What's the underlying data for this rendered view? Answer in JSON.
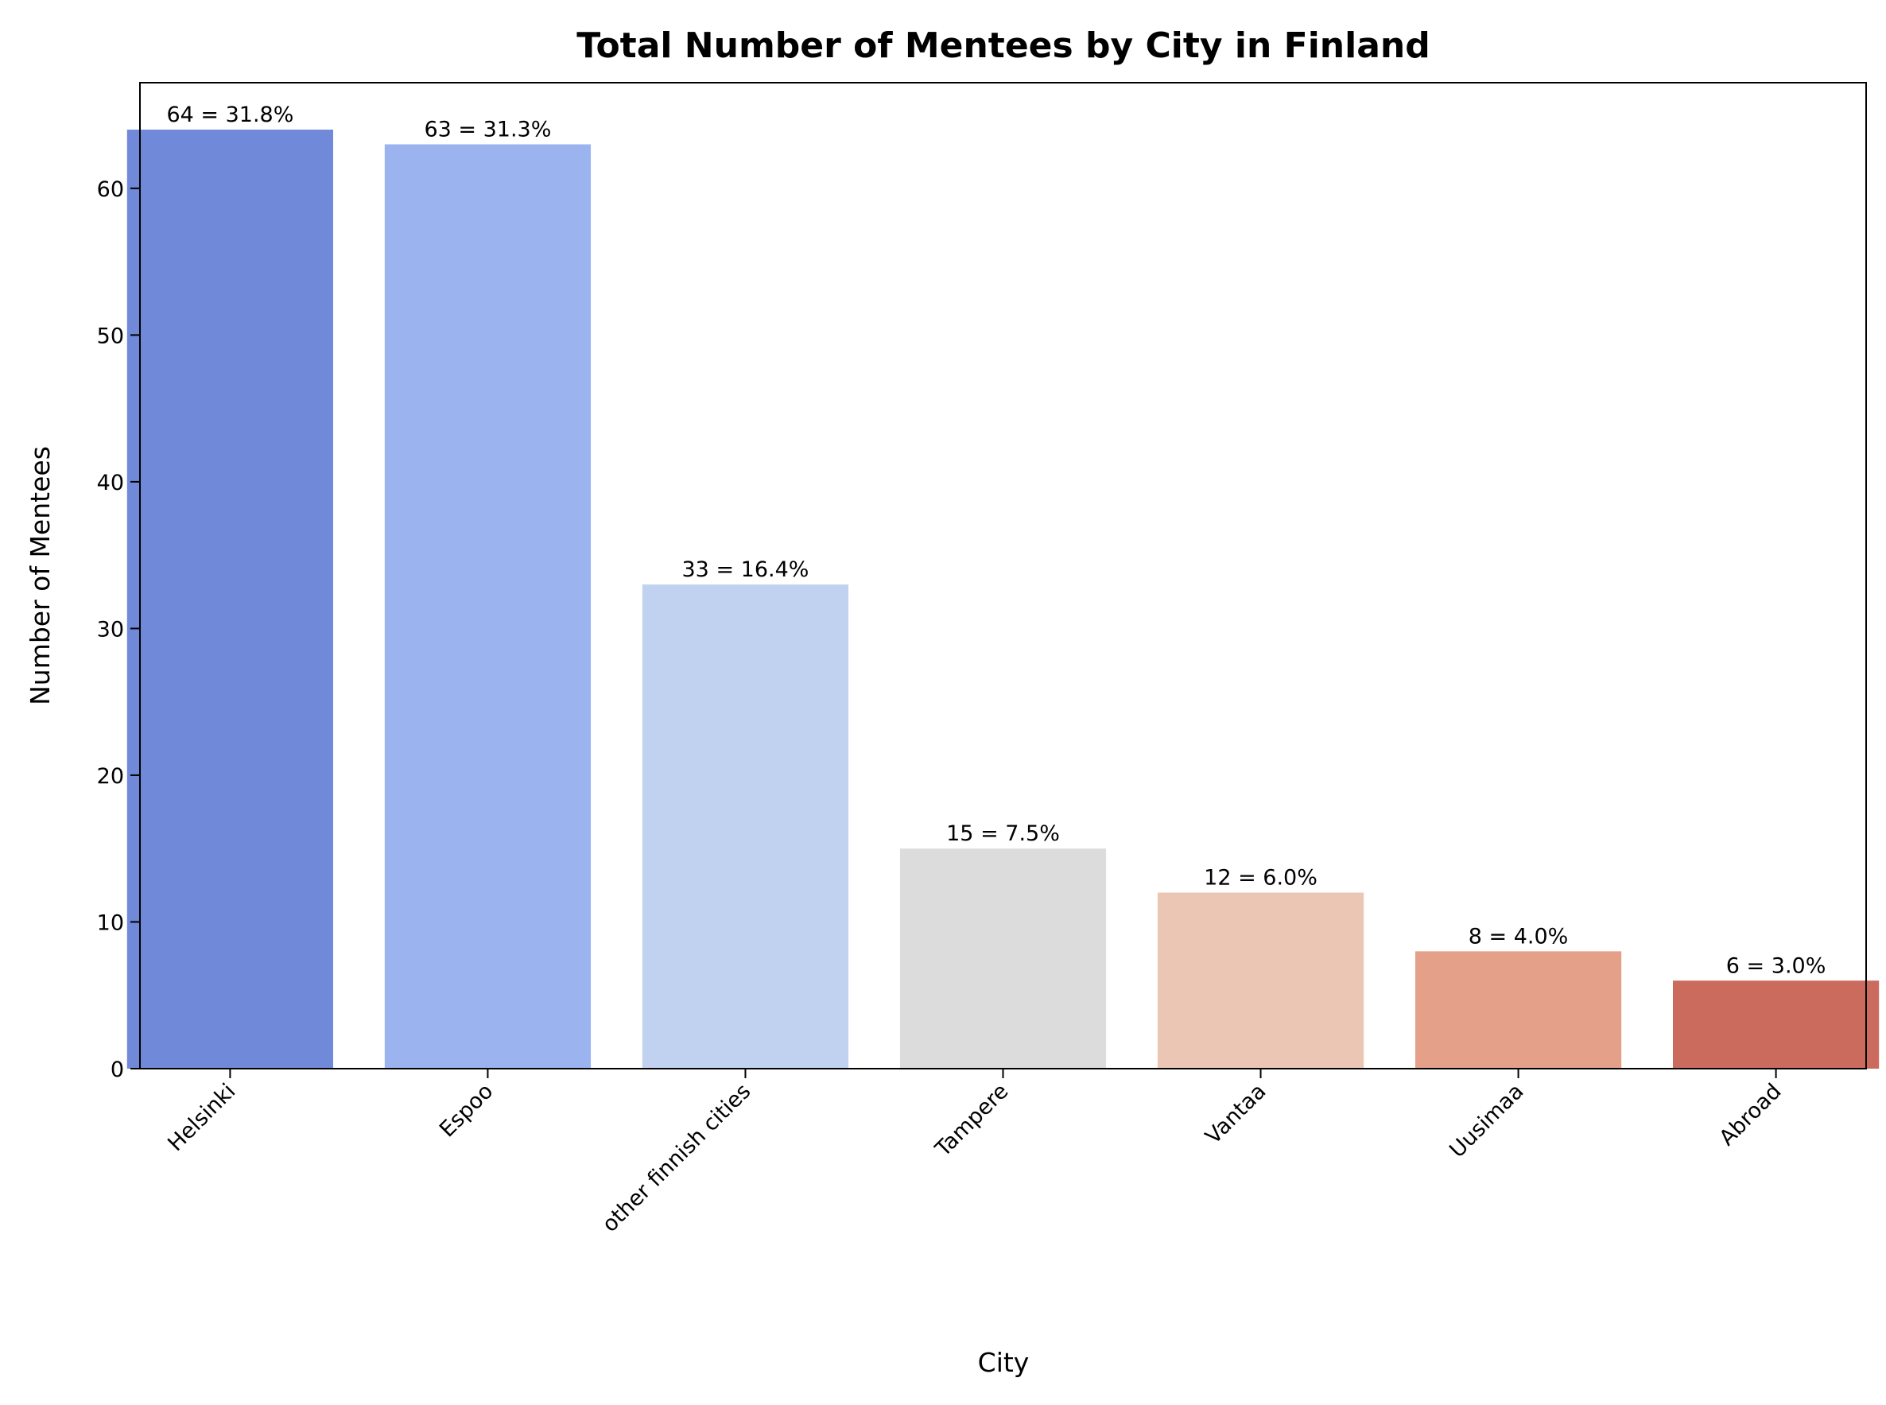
{
  "chart_data": {
    "type": "bar",
    "title": "Total Number of Mentees by City in Finland",
    "xlabel": "City",
    "ylabel": "Number of Mentees",
    "categories": [
      "Helsinki",
      "Espoo",
      "other finnish cities",
      "Tampere",
      "Vantaa",
      "Uusimaa",
      "Abroad"
    ],
    "values": [
      64,
      63,
      33,
      15,
      12,
      8,
      6
    ],
    "data_labels": [
      "64 = 31.8%",
      "63 = 31.3%",
      "33 = 16.4%",
      "15 = 7.5%",
      "12 = 6.0%",
      "8 = 4.0%",
      "6 = 3.0%"
    ],
    "colors": [
      "#7089d9",
      "#9bb4ef",
      "#c1d2f0",
      "#dcdcdc",
      "#ecc6b4",
      "#e4a088",
      "#cb6b5e"
    ],
    "yticks": [
      0,
      10,
      20,
      30,
      40,
      50,
      60
    ],
    "ylim": [
      0,
      67.2
    ],
    "grid": false,
    "legend": "none"
  }
}
